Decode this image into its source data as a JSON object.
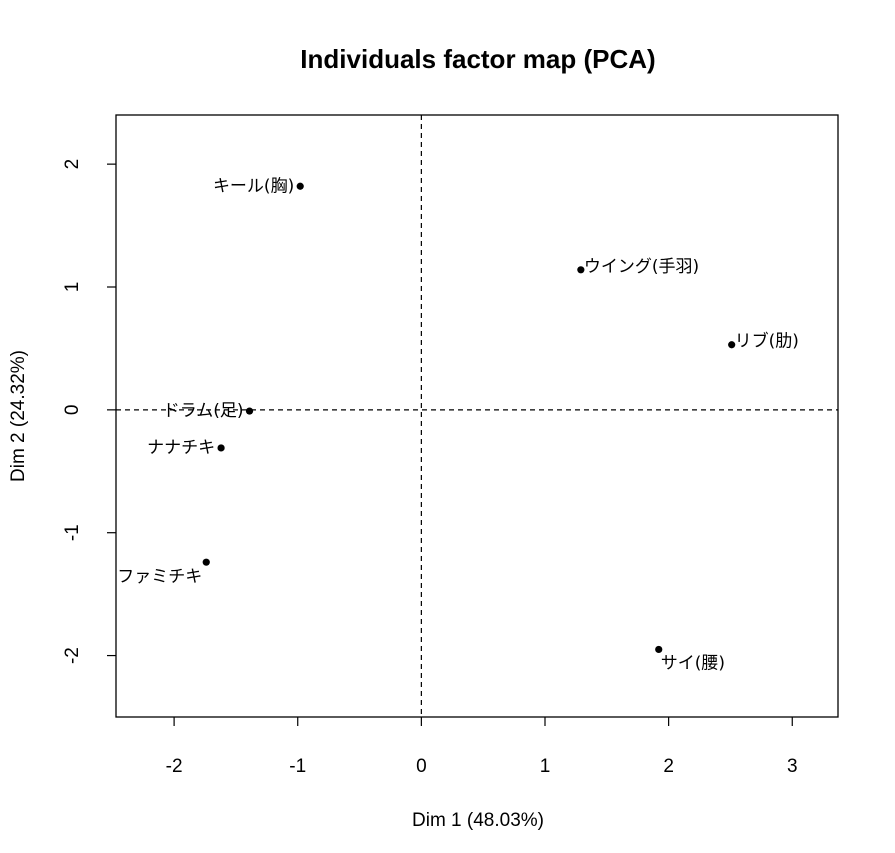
{
  "chart_data": {
    "type": "scatter",
    "title": "Individuals factor map (PCA)",
    "xlabel": "Dim 1 (48.03%)",
    "ylabel": "Dim 2 (24.32%)",
    "xlim": [
      -2.47,
      3.37
    ],
    "ylim": [
      -2.5,
      2.4
    ],
    "xticks": [
      -2,
      -1,
      0,
      1,
      2,
      3
    ],
    "yticks": [
      -2,
      -1,
      0,
      1,
      2
    ],
    "reference_lines": {
      "x": 0,
      "y": 0,
      "style": "dashed"
    },
    "points": [
      {
        "label": "キール(胸)",
        "x": -0.98,
        "y": 1.82,
        "label_pos": "left"
      },
      {
        "label": "ウイング(手羽)",
        "x": 1.29,
        "y": 1.14,
        "label_pos": "right"
      },
      {
        "label": "リブ(肋)",
        "x": 2.51,
        "y": 0.53,
        "label_pos": "right"
      },
      {
        "label": "ドラム(足)",
        "x": -1.39,
        "y": -0.01,
        "label_pos": "left"
      },
      {
        "label": "ナナチキ",
        "x": -1.62,
        "y": -0.31,
        "label_pos": "left"
      },
      {
        "label": "ファミチキ",
        "x": -1.74,
        "y": -1.24,
        "label_pos": "below-left"
      },
      {
        "label": "サイ(腰)",
        "x": 1.92,
        "y": -1.95,
        "label_pos": "below-right"
      }
    ]
  }
}
